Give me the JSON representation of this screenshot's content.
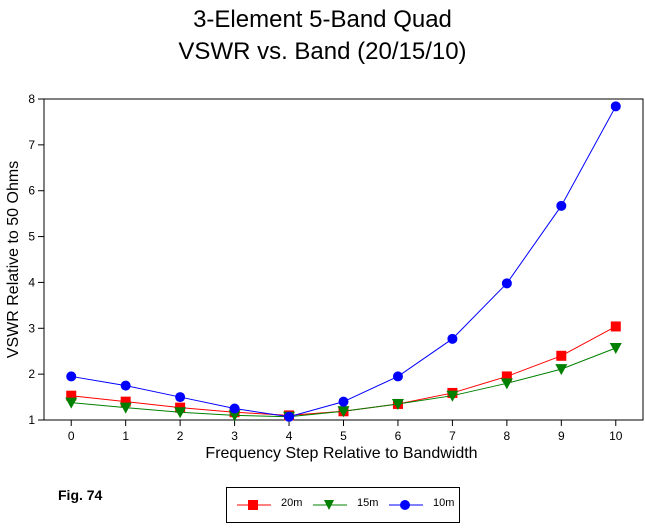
{
  "chart_data": {
    "type": "line",
    "title": "3-Element 5-Band Quad",
    "subtitle": "VSWR vs. Band (20/15/10)",
    "xlabel": "Frequency Step Relative to Bandwidth",
    "ylabel": "VSWR Relative to 50 Ohms",
    "x": [
      0,
      1,
      2,
      3,
      4,
      5,
      6,
      7,
      8,
      9,
      10
    ],
    "xlim": [
      -0.5,
      10.5
    ],
    "ylim": [
      1,
      8
    ],
    "yticks": [
      1,
      2,
      3,
      4,
      5,
      6,
      7,
      8
    ],
    "grid": false,
    "legend_placement": "bottom-center",
    "series": [
      {
        "name": "20m",
        "color": "#ff0000",
        "marker": "square",
        "values": [
          1.53,
          1.4,
          1.27,
          1.17,
          1.1,
          1.19,
          1.35,
          1.59,
          1.95,
          2.4,
          3.04
        ]
      },
      {
        "name": "15m",
        "color": "#008000",
        "marker": "triangle-down",
        "values": [
          1.38,
          1.27,
          1.17,
          1.1,
          1.07,
          1.19,
          1.35,
          1.53,
          1.8,
          2.11,
          2.57
        ]
      },
      {
        "name": "10m",
        "color": "#0000ff",
        "marker": "circle",
        "values": [
          1.95,
          1.75,
          1.5,
          1.25,
          1.07,
          1.4,
          1.95,
          2.77,
          3.98,
          5.67,
          7.84
        ]
      }
    ]
  },
  "figure_label": "Fig. 74"
}
